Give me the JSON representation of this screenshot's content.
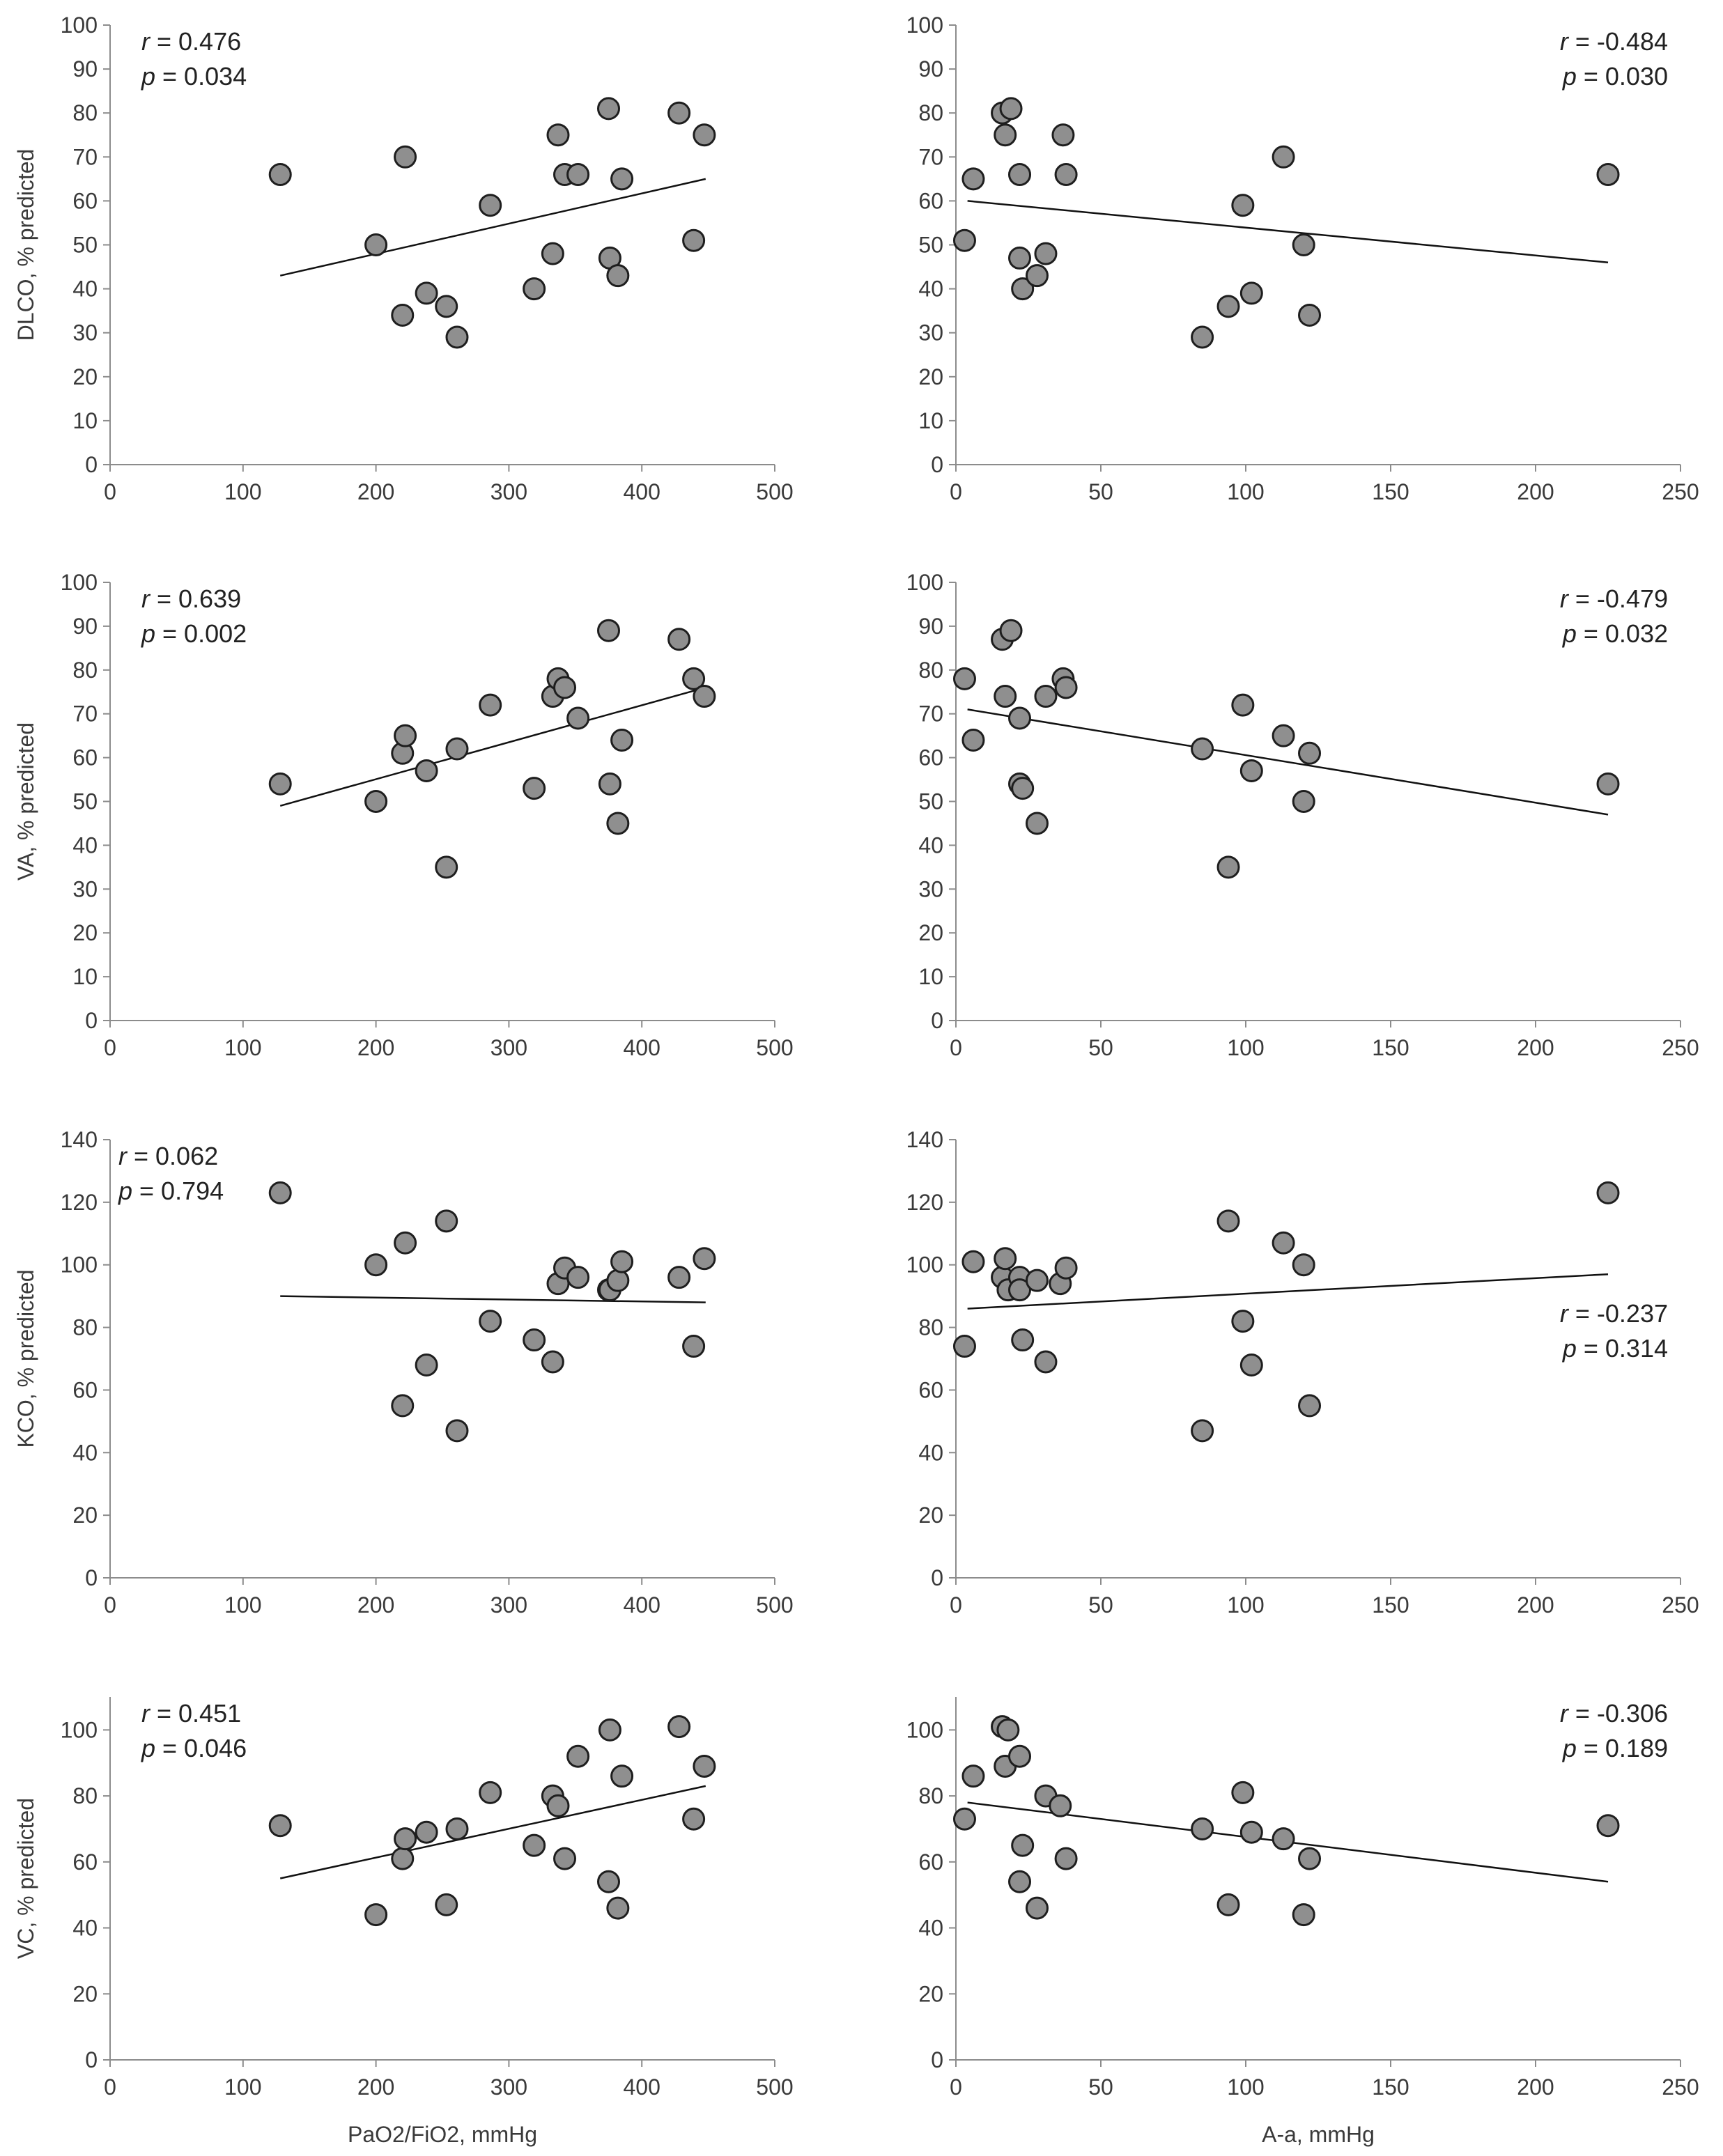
{
  "figure_title": "",
  "colors": {
    "point_fill": "#8f8f8f",
    "point_stroke": "#1e1e1e",
    "trend_line": "#111111",
    "axis": "#8c8c8c",
    "text": "#3a3a3a"
  },
  "chart_data": [
    {
      "id": "dlco-vs-pf",
      "type": "scatter",
      "ylabel": "DLCO, % predicted",
      "xlabel": "",
      "xlim": [
        0,
        500
      ],
      "xticks": [
        0,
        100,
        200,
        300,
        400,
        500
      ],
      "ylim": [
        0,
        100
      ],
      "yticks": [
        0,
        10,
        20,
        30,
        40,
        50,
        60,
        70,
        80,
        90,
        100
      ],
      "r_label": "r = 0.476",
      "p_label": "p = 0.034",
      "stats_position": "top-left",
      "trend": {
        "x": [
          128,
          448
        ],
        "y": [
          43,
          65
        ]
      },
      "points": {
        "x": [
          128,
          200,
          220,
          222,
          238,
          253,
          261,
          286,
          319,
          333,
          337,
          342,
          352,
          375,
          376,
          382,
          385,
          428,
          439,
          447
        ],
        "y": [
          66,
          50,
          34,
          70,
          39,
          36,
          29,
          59,
          40,
          48,
          75,
          66,
          66,
          81,
          47,
          43,
          65,
          80,
          51,
          75
        ]
      }
    },
    {
      "id": "dlco-vs-aa",
      "type": "scatter",
      "ylabel": "",
      "xlabel": "",
      "xlim": [
        0,
        250
      ],
      "xticks": [
        0,
        50,
        100,
        150,
        200,
        250
      ],
      "ylim": [
        0,
        100
      ],
      "yticks": [
        0,
        10,
        20,
        30,
        40,
        50,
        60,
        70,
        80,
        90,
        100
      ],
      "r_label": "r = -0.484",
      "p_label": "p = 0.030",
      "stats_position": "top-right",
      "trend": {
        "x": [
          4,
          225
        ],
        "y": [
          60,
          46
        ]
      },
      "points": {
        "x": [
          3,
          6,
          16,
          17,
          19,
          22,
          22,
          23,
          28,
          31,
          37,
          38,
          85,
          94,
          99,
          102,
          113,
          120,
          122,
          225
        ],
        "y": [
          51,
          65,
          80,
          75,
          81,
          47,
          66,
          40,
          43,
          48,
          75,
          66,
          29,
          36,
          59,
          39,
          70,
          50,
          34,
          66
        ]
      }
    },
    {
      "id": "va-vs-pf",
      "type": "scatter",
      "ylabel": "VA, % predicted",
      "xlabel": "",
      "xlim": [
        0,
        500
      ],
      "xticks": [
        0,
        100,
        200,
        300,
        400,
        500
      ],
      "ylim": [
        0,
        100
      ],
      "yticks": [
        0,
        10,
        20,
        30,
        40,
        50,
        60,
        70,
        80,
        90,
        100
      ],
      "r_label": "r = 0.639",
      "p_label": "p = 0.002",
      "stats_position": "top-left",
      "trend": {
        "x": [
          128,
          448
        ],
        "y": [
          49,
          76
        ]
      },
      "points": {
        "x": [
          128,
          200,
          220,
          222,
          238,
          253,
          261,
          286,
          319,
          333,
          337,
          342,
          352,
          375,
          376,
          382,
          385,
          428,
          439,
          447
        ],
        "y": [
          54,
          50,
          61,
          65,
          57,
          35,
          62,
          72,
          53,
          74,
          78,
          76,
          69,
          89,
          54,
          45,
          64,
          87,
          78,
          74
        ]
      }
    },
    {
      "id": "va-vs-aa",
      "type": "scatter",
      "ylabel": "",
      "xlabel": "",
      "xlim": [
        0,
        250
      ],
      "xticks": [
        0,
        50,
        100,
        150,
        200,
        250
      ],
      "ylim": [
        0,
        100
      ],
      "yticks": [
        0,
        10,
        20,
        30,
        40,
        50,
        60,
        70,
        80,
        90,
        100
      ],
      "r_label": "r = -0.479",
      "p_label": "p = 0.032",
      "stats_position": "top-right",
      "trend": {
        "x": [
          4,
          225
        ],
        "y": [
          71,
          47
        ]
      },
      "points": {
        "x": [
          3,
          6,
          16,
          17,
          19,
          22,
          22,
          23,
          28,
          31,
          37,
          38,
          85,
          94,
          99,
          102,
          113,
          120,
          122,
          225
        ],
        "y": [
          78,
          64,
          87,
          74,
          89,
          54,
          69,
          53,
          45,
          74,
          78,
          76,
          62,
          35,
          72,
          57,
          65,
          50,
          61,
          54
        ]
      }
    },
    {
      "id": "kco-vs-pf",
      "type": "scatter",
      "ylabel": "KCO, % predicted",
      "xlabel": "",
      "xlim": [
        0,
        500
      ],
      "xticks": [
        0,
        100,
        200,
        300,
        400,
        500
      ],
      "ylim": [
        0,
        140
      ],
      "yticks": [
        0,
        20,
        40,
        60,
        80,
        100,
        120,
        140
      ],
      "r_label": "r = 0.062",
      "p_label": "p = 0.794",
      "stats_position": "top-left",
      "trend": {
        "x": [
          128,
          448
        ],
        "y": [
          90,
          88
        ]
      },
      "points": {
        "x": [
          128,
          200,
          220,
          222,
          238,
          253,
          261,
          286,
          319,
          333,
          337,
          342,
          352,
          375,
          376,
          382,
          385,
          428,
          439,
          447
        ],
        "y": [
          123,
          100,
          55,
          107,
          68,
          114,
          47,
          82,
          76,
          69,
          94,
          99,
          96,
          92,
          92,
          95,
          101,
          96,
          74,
          102
        ]
      }
    },
    {
      "id": "kco-vs-aa",
      "type": "scatter",
      "ylabel": "",
      "xlabel": "",
      "xlim": [
        0,
        250
      ],
      "xticks": [
        0,
        50,
        100,
        150,
        200,
        250
      ],
      "ylim": [
        0,
        140
      ],
      "yticks": [
        0,
        20,
        40,
        60,
        80,
        100,
        120,
        140
      ],
      "r_label": "r = -0.237",
      "p_label": "p = 0.314",
      "stats_position": "right",
      "trend": {
        "x": [
          4,
          225
        ],
        "y": [
          86,
          97
        ]
      },
      "points": {
        "x": [
          3,
          6,
          16,
          17,
          18,
          22,
          22,
          23,
          28,
          31,
          36,
          38,
          85,
          94,
          99,
          102,
          113,
          120,
          122,
          225
        ],
        "y": [
          74,
          101,
          96,
          102,
          92,
          96,
          92,
          76,
          95,
          69,
          94,
          99,
          47,
          114,
          82,
          68,
          107,
          100,
          55,
          123
        ]
      }
    },
    {
      "id": "vc-vs-pf",
      "type": "scatter",
      "ylabel": "VC, % predicted",
      "xlabel": "PaO2/FiO2, mmHg",
      "xlim": [
        0,
        500
      ],
      "xticks": [
        0,
        100,
        200,
        300,
        400,
        500
      ],
      "ylim": [
        0,
        110
      ],
      "yticks": [
        0,
        20,
        40,
        60,
        80,
        100
      ],
      "r_label": "r = 0.451",
      "p_label": "p = 0.046",
      "stats_position": "top-left",
      "trend": {
        "x": [
          128,
          448
        ],
        "y": [
          55,
          83
        ]
      },
      "points": {
        "x": [
          128,
          200,
          220,
          222,
          238,
          253,
          261,
          286,
          319,
          333,
          337,
          342,
          352,
          375,
          376,
          382,
          385,
          428,
          439,
          447
        ],
        "y": [
          71,
          44,
          61,
          67,
          69,
          47,
          70,
          81,
          65,
          80,
          77,
          61,
          92,
          54,
          100,
          46,
          86,
          101,
          73,
          89
        ]
      }
    },
    {
      "id": "vc-vs-aa",
      "type": "scatter",
      "ylabel": "",
      "xlabel": "A-a, mmHg",
      "xlim": [
        0,
        250
      ],
      "xticks": [
        0,
        50,
        100,
        150,
        200,
        250
      ],
      "ylim": [
        0,
        110
      ],
      "yticks": [
        0,
        20,
        40,
        60,
        80,
        100
      ],
      "r_label": "r = -0.306",
      "p_label": "p = 0.189",
      "stats_position": "top-right",
      "trend": {
        "x": [
          4,
          225
        ],
        "y": [
          78,
          54
        ]
      },
      "points": {
        "x": [
          3,
          6,
          16,
          17,
          18,
          22,
          22,
          23,
          28,
          31,
          36,
          38,
          85,
          94,
          99,
          102,
          113,
          120,
          122,
          225
        ],
        "y": [
          73,
          86,
          101,
          89,
          100,
          92,
          54,
          65,
          46,
          80,
          77,
          61,
          70,
          47,
          81,
          69,
          67,
          44,
          61,
          71
        ]
      }
    }
  ]
}
